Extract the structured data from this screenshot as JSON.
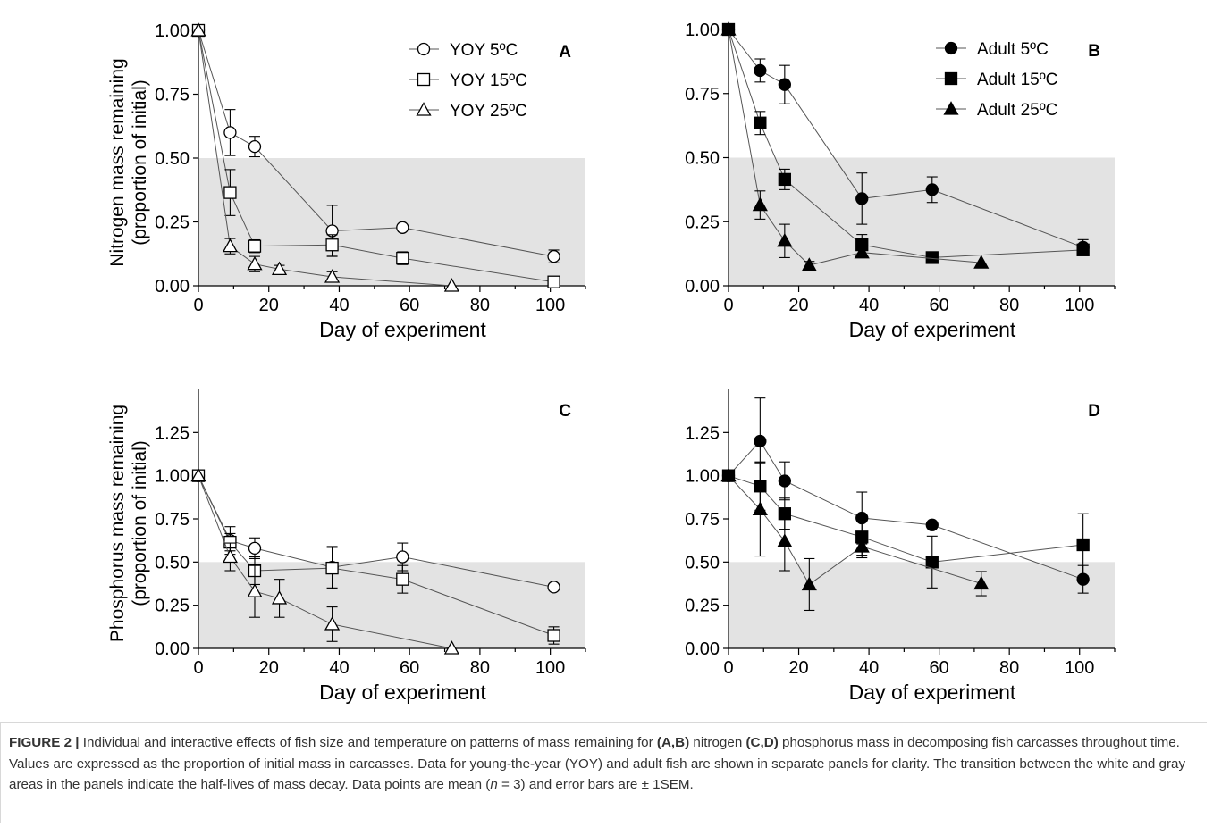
{
  "figure": {
    "caption_label": "FIGURE 2 |",
    "caption_text": " Individual and interactive effects of fish size and temperature on patterns of mass remaining for (A,B) nitrogen (C,D) phosphorus mass in decomposing fish carcasses throughout time. Values are expressed as the proportion of initial mass in carcasses. Data for young-the-year (YOY) and adult fish are shown in separate panels for clarity. The transition between the white and gray areas in the panels indicate the half-lives of mass decay. Data points are mean (n = 3) and error bars are ± 1SEM."
  },
  "style": {
    "shade_color": "#e3e3e3",
    "ink_color": "#000000",
    "line_color": "#555555"
  },
  "chart_data": [
    {
      "panel": "A",
      "type": "line",
      "xlabel": "Day of experiment",
      "ylabel_lines": [
        "Nitrogen mass remaining",
        "(proportion of initial)"
      ],
      "xlim": [
        0,
        110
      ],
      "ylim": [
        0,
        1.0
      ],
      "xticks": [
        "0",
        "20",
        "40",
        "60",
        "80",
        "100"
      ],
      "yticks": [
        "0.00",
        "0.25",
        "0.50",
        "0.75",
        "1.00"
      ],
      "shaded_below": 0.5,
      "legend_position": "top-right",
      "series": [
        {
          "name": "YOY 5ºC",
          "marker": "circle",
          "filled": false,
          "x": [
            0,
            9,
            16,
            38,
            58,
            101
          ],
          "y": [
            1.0,
            0.6,
            0.545,
            0.215,
            0.228,
            0.115
          ],
          "err": [
            0,
            0.09,
            0.04,
            0.1,
            0.0,
            0.025
          ]
        },
        {
          "name": "YOY 15ºC",
          "marker": "square",
          "filled": false,
          "x": [
            0,
            9,
            16,
            38,
            58,
            101
          ],
          "y": [
            1.0,
            0.365,
            0.155,
            0.16,
            0.108,
            0.015
          ],
          "err": [
            0,
            0.09,
            0.025,
            0.04,
            0.025,
            0.0
          ]
        },
        {
          "name": "YOY 25ºC",
          "marker": "triangle",
          "filled": false,
          "x": [
            0,
            9,
            16,
            23,
            38,
            72
          ],
          "y": [
            1.0,
            0.155,
            0.085,
            0.065,
            0.035,
            0.0
          ],
          "err": [
            0,
            0.03,
            0.03,
            0.015,
            0.02,
            0.0
          ]
        }
      ]
    },
    {
      "panel": "B",
      "type": "line",
      "xlabel": "Day of experiment",
      "ylabel_lines": [],
      "xlim": [
        0,
        110
      ],
      "ylim": [
        0,
        1.0
      ],
      "xticks": [
        "0",
        "20",
        "40",
        "60",
        "80",
        "100"
      ],
      "yticks": [
        "0.00",
        "0.25",
        "0.50",
        "0.75",
        "1.00"
      ],
      "shaded_below": 0.5,
      "legend_position": "top-right",
      "series": [
        {
          "name": "Adult 5ºC",
          "marker": "circle",
          "filled": true,
          "x": [
            0,
            9,
            16,
            38,
            58,
            101
          ],
          "y": [
            1.0,
            0.84,
            0.785,
            0.34,
            0.375,
            0.15
          ],
          "err": [
            0,
            0.045,
            0.075,
            0.1,
            0.05,
            0.03
          ]
        },
        {
          "name": "Adult 15ºC",
          "marker": "square",
          "filled": true,
          "x": [
            0,
            9,
            16,
            38,
            58,
            101
          ],
          "y": [
            1.0,
            0.635,
            0.415,
            0.16,
            0.11,
            0.14
          ],
          "err": [
            0,
            0.045,
            0.04,
            0.04,
            0.0,
            0.02
          ]
        },
        {
          "name": "Adult 25ºC",
          "marker": "triangle",
          "filled": true,
          "x": [
            0,
            9,
            16,
            23,
            38,
            72
          ],
          "y": [
            1.0,
            0.315,
            0.175,
            0.08,
            0.13,
            0.09
          ],
          "err": [
            0,
            0.055,
            0.065,
            0.015,
            0.02,
            0.0
          ]
        }
      ]
    },
    {
      "panel": "C",
      "type": "line",
      "xlabel": "Day of experiment",
      "ylabel_lines": [
        "Phosphorus mass remaining",
        "(proportion of initial)"
      ],
      "xlim": [
        0,
        110
      ],
      "ylim": [
        0,
        1.5
      ],
      "xticks": [
        "0",
        "20",
        "40",
        "60",
        "80",
        "100"
      ],
      "yticks": [
        "0.00",
        "0.25",
        "0.50",
        "0.75",
        "1.00",
        "1.25"
      ],
      "shaded_below": 0.5,
      "legend_position": "none",
      "series": [
        {
          "name": "",
          "marker": "circle",
          "filled": false,
          "x": [
            0,
            9,
            16,
            38,
            58,
            101
          ],
          "y": [
            1.0,
            0.625,
            0.58,
            0.47,
            0.53,
            0.355
          ],
          "err": [
            0,
            0.08,
            0.06,
            0.12,
            0.08,
            0.0
          ]
        },
        {
          "name": "",
          "marker": "square",
          "filled": false,
          "x": [
            0,
            9,
            16,
            38,
            58,
            101
          ],
          "y": [
            1.0,
            0.615,
            0.45,
            0.465,
            0.4,
            0.075
          ],
          "err": [
            0,
            0.05,
            0.08,
            0.12,
            0.08,
            0.05
          ]
        },
        {
          "name": "",
          "marker": "triangle",
          "filled": false,
          "x": [
            0,
            9,
            16,
            23,
            38,
            72
          ],
          "y": [
            1.0,
            0.53,
            0.33,
            0.29,
            0.14,
            0.0
          ],
          "err": [
            0,
            0.08,
            0.15,
            0.11,
            0.1,
            0.0
          ]
        }
      ]
    },
    {
      "panel": "D",
      "type": "line",
      "xlabel": "Day of experiment",
      "ylabel_lines": [],
      "xlim": [
        0,
        110
      ],
      "ylim": [
        0,
        1.5
      ],
      "xticks": [
        "0",
        "20",
        "40",
        "60",
        "80",
        "100"
      ],
      "yticks": [
        "0.00",
        "0.25",
        "0.50",
        "0.75",
        "1.00",
        "1.25"
      ],
      "shaded_below": 0.5,
      "legend_position": "none",
      "series": [
        {
          "name": "",
          "marker": "circle",
          "filled": true,
          "x": [
            0,
            9,
            16,
            38,
            58,
            101
          ],
          "y": [
            1.0,
            1.2,
            0.97,
            0.755,
            0.715,
            0.4
          ],
          "err": [
            0,
            0.25,
            0.11,
            0.15,
            0.0,
            0.08
          ]
        },
        {
          "name": "",
          "marker": "square",
          "filled": true,
          "x": [
            0,
            9,
            16,
            38,
            58,
            101
          ],
          "y": [
            1.0,
            0.94,
            0.78,
            0.645,
            0.5,
            0.6
          ],
          "err": [
            0,
            0.14,
            0.09,
            0.12,
            0.15,
            0.18
          ]
        },
        {
          "name": "",
          "marker": "triangle",
          "filled": true,
          "x": [
            0,
            9,
            16,
            23,
            38,
            72
          ],
          "y": [
            1.0,
            0.805,
            0.62,
            0.37,
            0.59,
            0.375
          ],
          "err": [
            0,
            0.27,
            0.17,
            0.15,
            0.05,
            0.07
          ]
        }
      ]
    }
  ]
}
